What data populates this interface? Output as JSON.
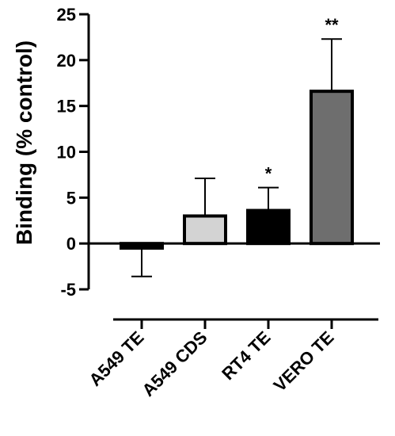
{
  "chart_data": {
    "type": "bar",
    "title": "",
    "xlabel": "",
    "ylabel": "Binding (% control)",
    "ylim": [
      -5,
      25
    ],
    "yticks": [
      -5,
      0,
      5,
      10,
      15,
      20,
      25
    ],
    "ytick_labels": [
      "-5",
      "0",
      "5",
      "10",
      "15",
      "20",
      "25"
    ],
    "categories": [
      "A549 TE",
      "A549 CDS",
      "RT4 TE",
      "VERO TE"
    ],
    "values": [
      -0.5,
      3.0,
      3.6,
      16.6
    ],
    "error_upper": [
      -3.6,
      7.1,
      6.1,
      22.3
    ],
    "significance": [
      "",
      "",
      "*",
      "**"
    ],
    "colors": [
      "#000000",
      "#d3d3d3",
      "#000000",
      "#6e6e6e"
    ],
    "grid": false,
    "legend": "none"
  }
}
